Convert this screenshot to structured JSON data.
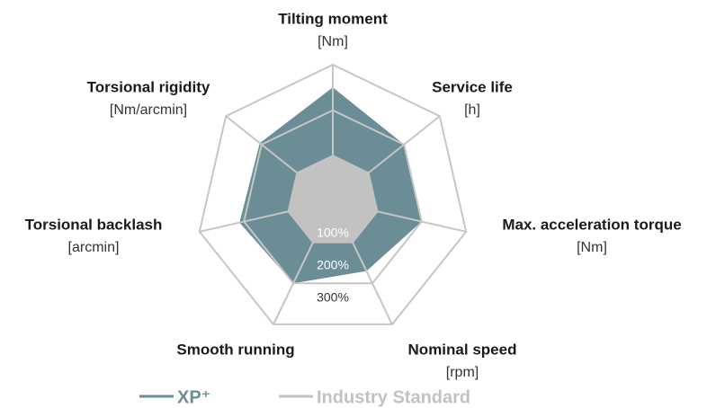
{
  "chart_data": {
    "type": "radar",
    "categories": [
      "Tilting moment",
      "Service life",
      "Max. acceleration torque",
      "Nominal speed",
      "Smooth running",
      "Torsional backlash",
      "Torsional rigidity"
    ],
    "units": [
      "[Nm]",
      "[h]",
      "[Nm]",
      "[rpm]",
      null,
      "[arcmin]",
      "[Nm/arcmin]"
    ],
    "rlim": [
      0,
      300
    ],
    "rticks": [
      {
        "value": 100,
        "label": "100%"
      },
      {
        "value": 200,
        "label": "200%"
      },
      {
        "value": 300,
        "label": "300%"
      }
    ],
    "series": [
      {
        "name": "XP⁺",
        "color": "#6a8d96",
        "values": [
          250,
          200,
          200,
          170,
          200,
          210,
          205
        ]
      },
      {
        "name": "Industry Standard",
        "color": "#c2c2c2",
        "values": [
          100,
          100,
          100,
          100,
          100,
          100,
          100
        ]
      }
    ]
  }
}
